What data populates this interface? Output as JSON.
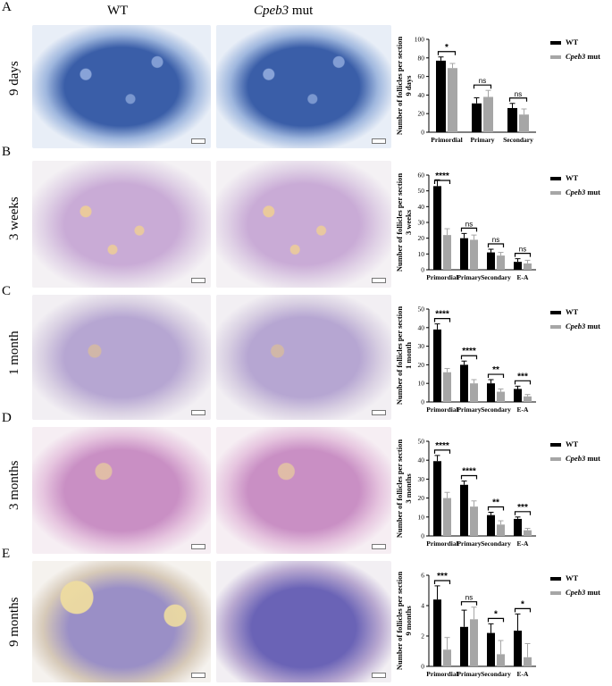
{
  "columns": {
    "wt": "WT",
    "mut_gene": "Cpeb3",
    "mut_suffix": " mut"
  },
  "colors": {
    "wt": "#000000",
    "mut": "#a6a6a6"
  },
  "panels": [
    {
      "letter": "A",
      "age": "9 days",
      "images": {
        "wt": "blue-stained ovary section",
        "mut": "blue-stained ovary section"
      }
    },
    {
      "letter": "B",
      "age": "3 weeks",
      "images": {
        "wt": "pink-stained ovary section",
        "mut": "pink-stained ovary section"
      }
    },
    {
      "letter": "C",
      "age": "1 month",
      "images": {
        "wt": "purple-stained ovary section",
        "mut": "purple-stained ovary section"
      }
    },
    {
      "letter": "D",
      "age": "3 months",
      "images": {
        "wt": "magenta-stained ovary section",
        "mut": "magenta-stained ovary section"
      }
    },
    {
      "letter": "E",
      "age": "9 months",
      "images": {
        "wt": "tan-stained ovary section",
        "mut": "dark-stained ovary section"
      }
    }
  ],
  "chart_data": [
    {
      "type": "bar",
      "panel": "A",
      "ylabel_line1": "Number of  follicles per section",
      "ylabel_line2": "9 days",
      "ylim": [
        0,
        100
      ],
      "yticks": [
        0,
        20,
        40,
        60,
        80,
        100
      ],
      "categories": [
        "Primordial",
        "Primary",
        "Secondary"
      ],
      "series": [
        {
          "name": "WT",
          "values": [
            77,
            31,
            26
          ],
          "errors": [
            4,
            6,
            5
          ]
        },
        {
          "name": "Cpeb3 mut",
          "values": [
            69,
            38,
            19
          ],
          "errors": [
            5,
            7,
            6
          ]
        }
      ],
      "significance": [
        "*",
        "ns",
        "ns"
      ],
      "legend": "right"
    },
    {
      "type": "bar",
      "panel": "B",
      "ylabel_line1": "Number of  follicles per section",
      "ylabel_line2": "3 weeks",
      "ylim": [
        0,
        60
      ],
      "yticks": [
        0,
        10,
        20,
        30,
        40,
        50,
        60
      ],
      "categories": [
        "Primordial",
        "Primary",
        "Secondary",
        "E-A"
      ],
      "series": [
        {
          "name": "WT",
          "values": [
            53,
            20,
            11,
            5
          ],
          "errors": [
            4,
            3,
            2,
            2
          ]
        },
        {
          "name": "Cpeb3 mut",
          "values": [
            22,
            19,
            9,
            4
          ],
          "errors": [
            4,
            3,
            2,
            2
          ]
        }
      ],
      "significance": [
        "****",
        "ns",
        "ns",
        "ns"
      ],
      "legend": "right"
    },
    {
      "type": "bar",
      "panel": "C",
      "ylabel_line1": "Number of  follicles per section",
      "ylabel_line2": "1 month",
      "ylim": [
        0,
        50
      ],
      "yticks": [
        0,
        10,
        20,
        30,
        40,
        50
      ],
      "categories": [
        "Primordial",
        "Primary",
        "Secondary",
        "E-A"
      ],
      "series": [
        {
          "name": "WT",
          "values": [
            39,
            20,
            10,
            7
          ],
          "errors": [
            3,
            2,
            2,
            1.5
          ]
        },
        {
          "name": "Cpeb3 mut",
          "values": [
            16,
            10,
            5.5,
            3
          ],
          "errors": [
            2,
            2,
            1.5,
            1
          ]
        }
      ],
      "significance": [
        "****",
        "****",
        "**",
        "***"
      ],
      "legend": "right"
    },
    {
      "type": "bar",
      "panel": "D",
      "ylabel_line1": "Number of  follicles per section",
      "ylabel_line2": "3 months",
      "ylim": [
        0,
        50
      ],
      "yticks": [
        0,
        10,
        20,
        30,
        40,
        50
      ],
      "categories": [
        "Primordial",
        "Primary",
        "Secondary",
        "E-A"
      ],
      "series": [
        {
          "name": "WT",
          "values": [
            39.5,
            27,
            11,
            9
          ],
          "errors": [
            3,
            2,
            1.5,
            1
          ]
        },
        {
          "name": "Cpeb3 mut",
          "values": [
            20,
            15.5,
            6,
            3
          ],
          "errors": [
            3,
            3,
            2,
            1
          ]
        }
      ],
      "significance": [
        "****",
        "****",
        "**",
        "***"
      ],
      "legend": "right"
    },
    {
      "type": "bar",
      "panel": "E",
      "ylabel_line1": "Number of  follicles per section",
      "ylabel_line2": "9 months",
      "ylim": [
        0,
        6
      ],
      "yticks": [
        0,
        2,
        4,
        6
      ],
      "categories": [
        "Primordial",
        "Primary",
        "Secondary",
        "E-A"
      ],
      "series": [
        {
          "name": "WT",
          "values": [
            4.4,
            2.6,
            2.2,
            2.35
          ],
          "errors": [
            0.9,
            1.1,
            0.6,
            1.1
          ]
        },
        {
          "name": "Cpeb3 mut",
          "values": [
            1.1,
            3.1,
            0.8,
            0.6
          ],
          "errors": [
            0.8,
            0.8,
            0.9,
            0.9
          ]
        }
      ],
      "significance": [
        "***",
        "ns",
        "*",
        "*"
      ],
      "legend": "right"
    }
  ]
}
